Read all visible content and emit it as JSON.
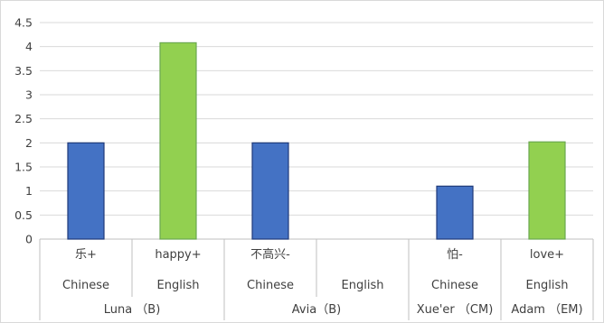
{
  "chart_data": {
    "type": "bar",
    "title": "",
    "xlabel": "",
    "ylabel": "",
    "ylim": [
      0,
      4.5
    ],
    "yticks": [
      "0",
      "0.5",
      "1",
      "1.5",
      "2",
      "2.5",
      "3",
      "3.5",
      "4",
      "4.5"
    ],
    "grid": true,
    "legend": "none",
    "colors": {
      "Chinese": "#4472C4",
      "English": "#92D050",
      "chinese_border": "#1F3A7A",
      "english_border": "#6AA84F",
      "grid": "#D9D9D9",
      "axis": "#595959",
      "text": "#404040"
    },
    "categories": [
      {
        "word": "乐+",
        "language": "Chinese",
        "person": "Luna （B)",
        "value": 2.0
      },
      {
        "word": "happy+",
        "language": "English",
        "person": "Luna （B)",
        "value": 4.08
      },
      {
        "word": "不高兴-",
        "language": "Chinese",
        "person": "Avia（B)",
        "value": 2.0
      },
      {
        "word": "",
        "language": "English",
        "person": "Avia（B)",
        "value": null
      },
      {
        "word": "怕-",
        "language": "Chinese",
        "person": "Xue'er （CM)",
        "value": 1.1
      },
      {
        "word": "love+",
        "language": "English",
        "person": "Adam （EM)",
        "value": 2.02
      }
    ],
    "groups": [
      {
        "label": "Luna （B)",
        "span": 2
      },
      {
        "label": "Avia（B)",
        "span": 2
      },
      {
        "label": "Xue'er （CM)",
        "span": 1
      },
      {
        "label": "Adam （EM)",
        "span": 1
      }
    ]
  }
}
